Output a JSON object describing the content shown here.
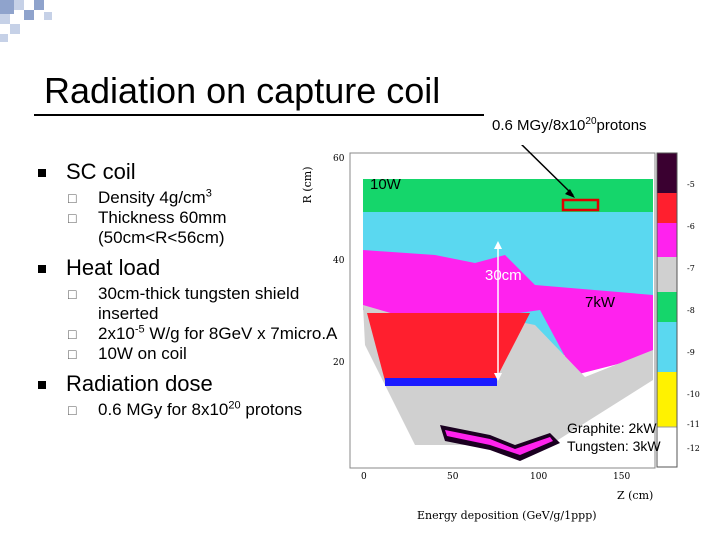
{
  "slide": {
    "title": "Radiation on capture coil",
    "top_annotation": {
      "prefix": "0.6 MGy/8x10",
      "exponent": "20",
      "suffix": "protons"
    }
  },
  "bullets": [
    {
      "text": "SC coil",
      "children": [
        {
          "parts": [
            "Density 4g/cm",
            "3"
          ]
        },
        {
          "parts": [
            "Thickness 60mm (50cm<R<56cm)"
          ]
        }
      ]
    },
    {
      "text": "Heat load",
      "children": [
        {
          "parts": [
            "30cm-thick tungsten shield inserted"
          ]
        },
        {
          "parts": [
            "2x10",
            "-5",
            " W/g for 8GeV x 7micro.A"
          ]
        },
        {
          "parts": [
            "10W on coil"
          ]
        }
      ]
    },
    {
      "text": "Radiation dose",
      "children": [
        {
          "parts": [
            "0.6 MGy for 8x10",
            "20",
            " protons"
          ]
        }
      ]
    }
  ],
  "plot": {
    "y_axis_label": "R (cm)",
    "x_axis_label": "Z (cm)",
    "caption": "Energy deposition (GeV/g/1ppp)",
    "y_ticks": [
      "60",
      "40",
      "20"
    ],
    "x_ticks": [
      "0",
      "50",
      "100",
      "150"
    ],
    "colorbar_ticks": [
      "-5",
      "-6",
      "-7",
      "-8",
      "-9",
      "-10",
      "-11",
      "-12"
    ],
    "annotations": {
      "coil_power": "10W",
      "shield_thickness": "30cm",
      "shield_power": "7kW",
      "graphite_power": "Graphite: 2kW",
      "tungsten_power": "Tungsten: 3kW"
    },
    "colors": {
      "green": "#15d66b",
      "cyan": "#5ad8f0",
      "magenta": "#ff22ee",
      "red": "#ff1f2e",
      "blue": "#1a1aff"
    }
  }
}
